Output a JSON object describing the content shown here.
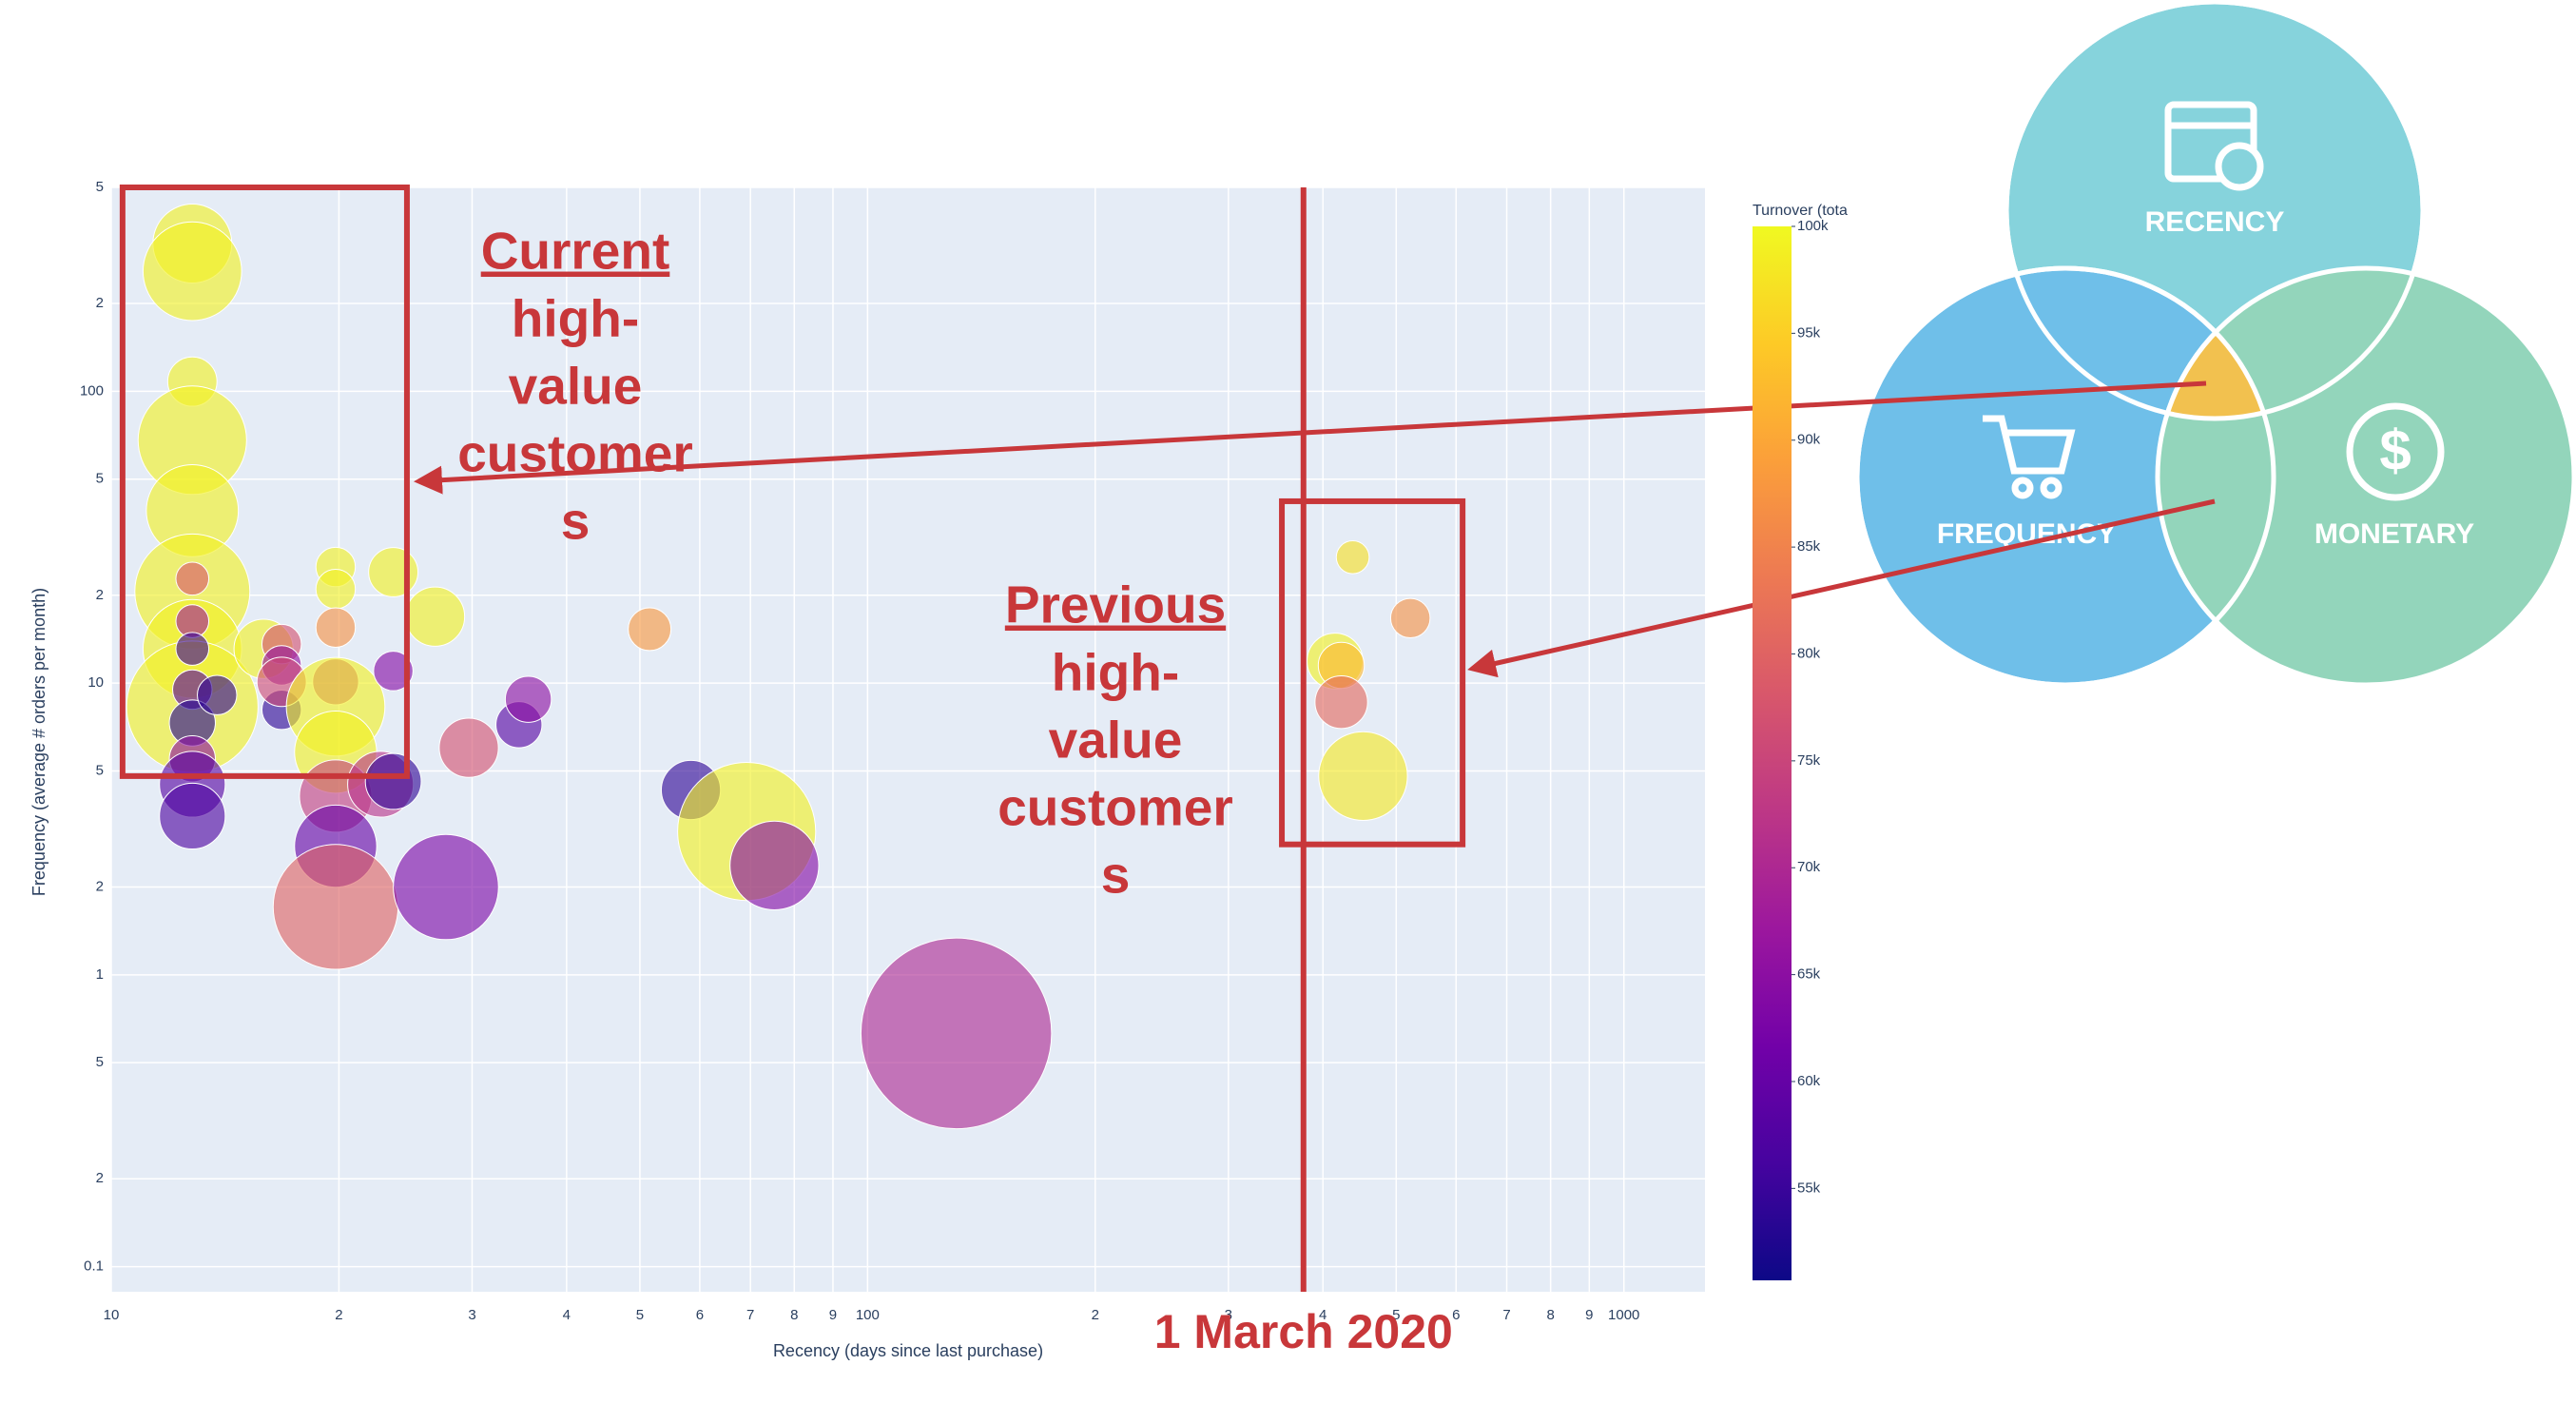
{
  "chart_data": {
    "type": "scatter",
    "x_label": "Recency (days since last purchase)",
    "y_label": "Frequency (average # orders per month)",
    "xlog": true,
    "ylog": true,
    "grid": true,
    "xlim": [
      10,
      1280
    ],
    "ylim": [
      0.082,
      500
    ],
    "xticks": [
      10,
      {
        "value": 20,
        "label": "2"
      },
      {
        "value": 30,
        "label": "3"
      },
      {
        "value": 40,
        "label": "4"
      },
      {
        "value": 50,
        "label": "5"
      },
      {
        "value": 60,
        "label": "6"
      },
      {
        "value": 70,
        "label": "7"
      },
      {
        "value": 80,
        "label": "8"
      },
      {
        "value": 90,
        "label": "9"
      },
      100,
      {
        "value": 200,
        "label": "2"
      },
      {
        "value": 300,
        "label": "3"
      },
      {
        "value": 400,
        "label": "4"
      },
      {
        "value": 500,
        "label": "5"
      },
      {
        "value": 600,
        "label": "6"
      },
      {
        "value": 700,
        "label": "7"
      },
      {
        "value": 800,
        "label": "8"
      },
      {
        "value": 900,
        "label": "9"
      },
      1000
    ],
    "yticks": [
      0.1,
      {
        "value": 0.2,
        "label": "2"
      },
      {
        "value": 0.5,
        "label": "5"
      },
      1,
      {
        "value": 2,
        "label": "2"
      },
      {
        "value": 5,
        "label": "5"
      },
      10,
      {
        "value": 20,
        "label": "2"
      },
      {
        "value": 50,
        "label": "5"
      },
      100,
      {
        "value": 200,
        "label": "2"
      },
      {
        "value": 500,
        "label": "5"
      }
    ],
    "colorbar_title": "Turnover (tota",
    "colorscale": [
      "#0d0887",
      "#46039f",
      "#7201a8",
      "#9c179e",
      "#bd3786",
      "#d8576b",
      "#ed7953",
      "#fb9f3a",
      "#fdca26",
      "#f0f921"
    ],
    "clim": [
      50700,
      100000
    ],
    "cticks": [
      {
        "value": 55000,
        "label": "55k"
      },
      {
        "value": 60000,
        "label": "60k"
      },
      {
        "value": 65000,
        "label": "65k"
      },
      {
        "value": 70000,
        "label": "70k"
      },
      {
        "value": 75000,
        "label": "75k"
      },
      {
        "value": 80000,
        "label": "80k"
      },
      {
        "value": 85000,
        "label": "85k"
      },
      {
        "value": 90000,
        "label": "90k"
      },
      {
        "value": 95000,
        "label": "95k"
      },
      {
        "value": 100000,
        "label": "100k"
      }
    ],
    "x": [
      12.8,
      12.8,
      12.8,
      12.8,
      12.8,
      12.8,
      12.8,
      12.8,
      12.8,
      12.8,
      12.8,
      12.8,
      12.8,
      12.8,
      12.8,
      12.8,
      13.8,
      15.9,
      16.8,
      16.8,
      16.8,
      16.8,
      19.8,
      19.8,
      19.8,
      19.8,
      19.8,
      19.8,
      19.8,
      19.8,
      19.8,
      22.7,
      23.6,
      23.6,
      23.6,
      26.8,
      29.7,
      27.7,
      34.6,
      35.6,
      51.5,
      58.4,
      69.2,
      75.3,
      131,
      438,
      415,
      423,
      423,
      522,
      452
    ],
    "y": [
      321,
      258,
      108,
      68,
      39,
      20.6,
      13.1,
      8.3,
      22.8,
      16.3,
      13.1,
      9.5,
      7.3,
      5.5,
      4.5,
      3.5,
      9.1,
      13.1,
      13.6,
      11.5,
      8.1,
      10.1,
      25,
      21,
      15.5,
      10.1,
      8.3,
      5.8,
      4.1,
      2.76,
      1.71,
      4.5,
      4.6,
      24,
      11,
      16.9,
      6.0,
      2.0,
      7.2,
      8.8,
      15.3,
      4.3,
      3.1,
      2.37,
      0.63,
      27,
      11.9,
      11.5,
      8.6,
      16.7,
      4.8
    ],
    "sizes": [
      24,
      30,
      15,
      33,
      28,
      35,
      30,
      40,
      10,
      10,
      10,
      12,
      14,
      14,
      20,
      20,
      12,
      18,
      12,
      12,
      12,
      15,
      12,
      12,
      12,
      14,
      30,
      25,
      22,
      25,
      38,
      20,
      17,
      15,
      12,
      18,
      18,
      32,
      14,
      14,
      13,
      18,
      42,
      27,
      58,
      10,
      17,
      14,
      16,
      12,
      27
    ],
    "color_values": [
      99000,
      99000,
      99000,
      99000,
      99000,
      99000,
      99000,
      99000,
      78000,
      68000,
      55000,
      58000,
      53000,
      65000,
      58000,
      57000,
      54000,
      99000,
      77000,
      66000,
      54000,
      76000,
      99000,
      99000,
      87000,
      73000,
      99000,
      99000,
      74000,
      60000,
      80000,
      72000,
      54000,
      99000,
      64000,
      99000,
      77000,
      63000,
      58000,
      65000,
      88000,
      54000,
      99000,
      64000,
      70000,
      97000,
      99000,
      92000,
      81000,
      87000,
      98000
    ],
    "vline": {
      "x": 377,
      "label": "1 March 2020"
    },
    "regions": [
      {
        "label_lines": [
          "Current",
          "high-",
          "value",
          "customer",
          "s"
        ],
        "x": [
          10.35,
          24.6
        ],
        "y": [
          4.8,
          500
        ]
      },
      {
        "label_lines": [
          "Previous",
          "high-",
          "value",
          "customer",
          "s"
        ],
        "x": [
          353,
          612
        ],
        "y": [
          2.8,
          42
        ]
      }
    ]
  },
  "venn": {
    "labels": [
      "RECENCY",
      "FREQUENCY",
      "MONETARY"
    ]
  }
}
